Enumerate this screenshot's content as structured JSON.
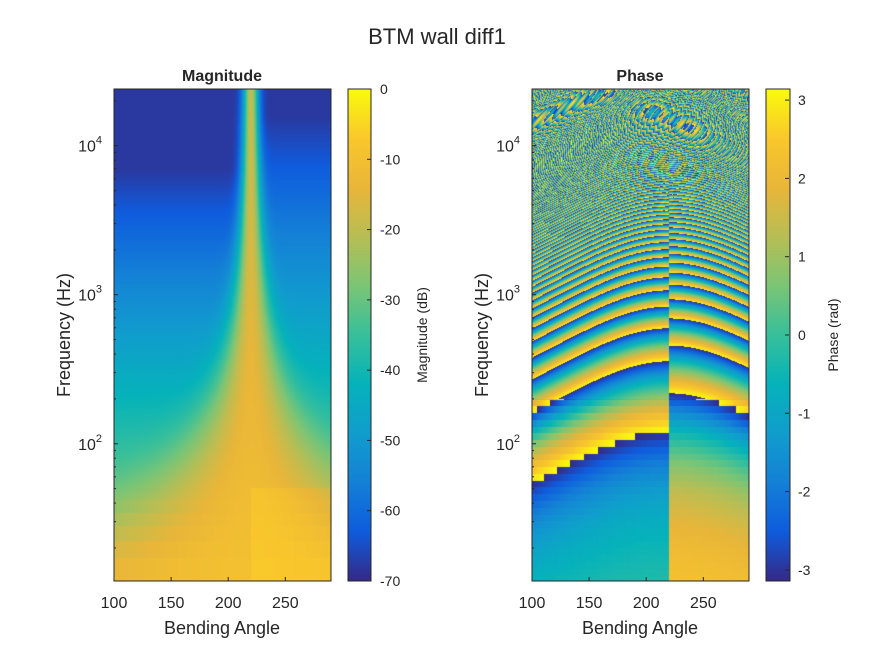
{
  "figure": {
    "title": "BTM wall diff1"
  },
  "chart_data": [
    {
      "type": "heatmap",
      "title": "Magnitude",
      "xlabel": "Bending Angle",
      "ylabel": "Frequency (Hz)",
      "x_ticks": [
        100,
        150,
        200,
        250
      ],
      "xlim": [
        100,
        290
      ],
      "y_scale": "log",
      "ylim": [
        12,
        24000
      ],
      "y_ticks": [
        {
          "value": 100,
          "base": "10",
          "exp": "2"
        },
        {
          "value": 1000,
          "base": "10",
          "exp": "3"
        },
        {
          "value": 10000,
          "base": "10",
          "exp": "4"
        }
      ],
      "colorbar": {
        "label": "Magnitude (dB)",
        "range": [
          -70,
          0
        ],
        "ticks": [
          "0",
          "-10",
          "-20",
          "-30",
          "-40",
          "-50",
          "-60",
          "-70"
        ],
        "colormap": "parula"
      },
      "feature": "diffraction shadow boundary at bending angle ≈ 220; magnitude ≈ -25 dB at low frequency falling to ≈ -65 dB at high frequency away from the boundary"
    },
    {
      "type": "heatmap",
      "title": "Phase",
      "xlabel": "Bending Angle",
      "ylabel": "Frequency (Hz)",
      "x_ticks": [
        100,
        150,
        200,
        250
      ],
      "xlim": [
        100,
        290
      ],
      "y_scale": "log",
      "ylim": [
        12,
        24000
      ],
      "y_ticks": [
        {
          "value": 100,
          "base": "10",
          "exp": "2"
        },
        {
          "value": 1000,
          "base": "10",
          "exp": "3"
        },
        {
          "value": 10000,
          "base": "10",
          "exp": "4"
        }
      ],
      "colorbar": {
        "label": "Phase (rad)",
        "range": [
          -3.1416,
          3.1416
        ],
        "ticks": [
          "3",
          "2",
          "1",
          "0",
          "-1",
          "-2",
          "-3"
        ],
        "colormap": "parula"
      },
      "feature": "wrapped phase bands that increase in density with frequency; discontinuity at bending angle ≈ 220"
    }
  ]
}
